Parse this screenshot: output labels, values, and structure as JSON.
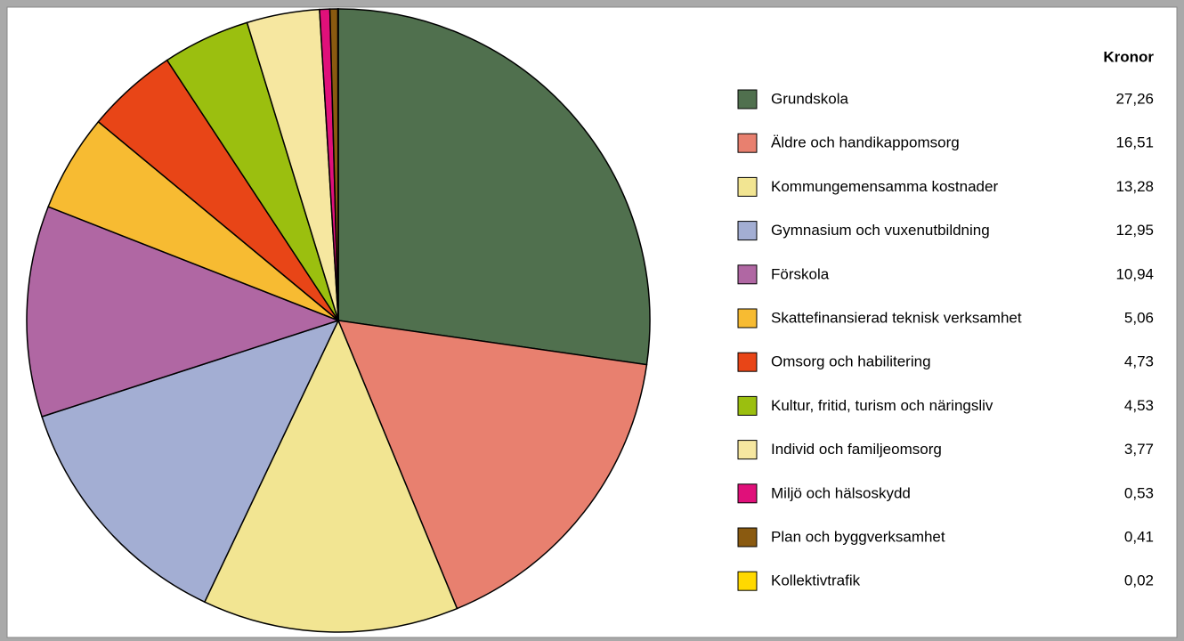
{
  "chart_data": {
    "type": "pie",
    "legend_title": "Kronor",
    "categories": [
      "Grundskola",
      "Äldre och handikappomsorg",
      "Kommungemensamma kostnader",
      "Gymnasium och vuxenutbildning",
      "Förskola",
      "Skattefinansierad teknisk verksamhet",
      "Omsorg och habilitering",
      "Kultur, fritid, turism och näringsliv",
      "Individ och familjeomsorg",
      "Miljö och hälsoskydd",
      "Plan och byggverksamhet",
      "Kollektivtrafik"
    ],
    "values": [
      27.26,
      16.51,
      13.28,
      12.95,
      10.94,
      5.06,
      4.73,
      4.53,
      3.77,
      0.53,
      0.41,
      0.02
    ],
    "value_labels": [
      "27,26",
      "16,51",
      "13,28",
      "12,95",
      "10,94",
      "5,06",
      "4,73",
      "4,53",
      "3,77",
      "0,53",
      "0,41",
      "0,02"
    ],
    "colors": [
      "#50704e",
      "#e8806f",
      "#f2e592",
      "#a3aed3",
      "#b067a3",
      "#f7bb32",
      "#e84517",
      "#9bbf0f",
      "#f6e7a0",
      "#e0107a",
      "#8a5a10",
      "#ffd900"
    ],
    "legend": "right"
  }
}
